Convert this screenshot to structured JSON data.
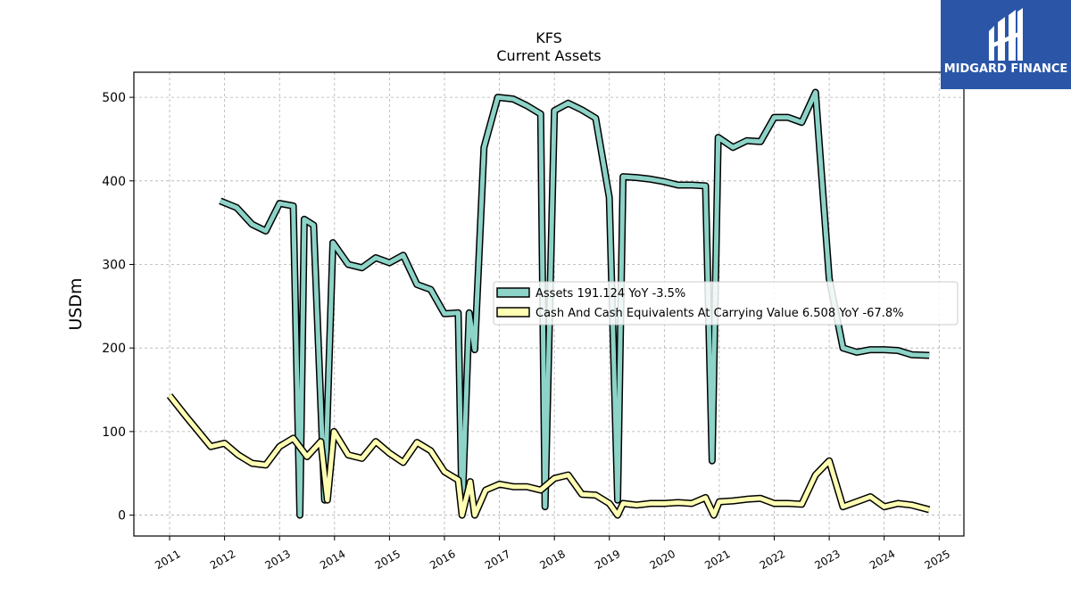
{
  "brand": {
    "name": "MIDGARD FINANCE",
    "color": "#2b56a8"
  },
  "chart_data": {
    "type": "line",
    "title": "KFS",
    "subtitle": "Current  Assets",
    "ylabel": "USDm",
    "xlabel": "",
    "ylim": [
      -25,
      530
    ],
    "xlim": [
      2010.35,
      2025.45
    ],
    "yticks": [
      0,
      100,
      200,
      300,
      400,
      500
    ],
    "xticks": [
      2011,
      2012,
      2013,
      2014,
      2015,
      2016,
      2017,
      2018,
      2019,
      2020,
      2021,
      2022,
      2023,
      2024,
      2025
    ],
    "grid": true,
    "legend_position": "center-right",
    "series": [
      {
        "name": "Assets",
        "legend_label": "Assets  191.124 YoY -3.5%",
        "color": "#8dd3c7",
        "x": [
          2011.92,
          2012.22,
          2012.5,
          2012.75,
          2013.0,
          2013.25,
          2013.37,
          2013.45,
          2013.62,
          2013.82,
          2013.97,
          2014.25,
          2014.5,
          2014.75,
          2015.0,
          2015.25,
          2015.5,
          2015.75,
          2016.0,
          2016.25,
          2016.32,
          2016.45,
          2016.55,
          2016.72,
          2016.97,
          2017.25,
          2017.5,
          2017.75,
          2017.83,
          2018.0,
          2018.25,
          2018.5,
          2018.75,
          2019.0,
          2019.15,
          2019.25,
          2019.5,
          2019.75,
          2020.0,
          2020.25,
          2020.5,
          2020.75,
          2020.87,
          2020.98,
          2021.25,
          2021.5,
          2021.75,
          2022.0,
          2022.25,
          2022.5,
          2022.75,
          2023.0,
          2023.25,
          2023.5,
          2023.75,
          2024.0,
          2024.25,
          2024.5,
          2024.82
        ],
        "values": [
          376,
          368,
          348,
          340,
          373,
          370,
          0,
          354,
          347,
          18,
          326,
          300,
          296,
          308,
          302,
          311,
          276,
          270,
          241,
          242,
          2,
          242,
          198,
          440,
          500,
          498,
          490,
          480,
          10,
          484,
          493,
          485,
          475,
          380,
          18,
          405,
          404,
          402,
          399,
          395,
          395,
          394,
          65,
          452,
          440,
          448,
          447,
          476,
          476,
          470,
          506,
          283,
          200,
          195,
          198,
          198,
          197,
          192,
          191.124
        ]
      },
      {
        "name": "Cash And Cash Equivalents At Carrying Value",
        "legend_label": "Cash And Cash Equivalents At Carrying Value  6.508 YoY -67.8%",
        "color": "#ffffb3",
        "x": [
          2011.0,
          2011.3,
          2011.75,
          2012.0,
          2012.25,
          2012.5,
          2012.75,
          2013.0,
          2013.25,
          2013.5,
          2013.75,
          2013.87,
          2013.99,
          2014.25,
          2014.5,
          2014.75,
          2015.0,
          2015.25,
          2015.5,
          2015.75,
          2016.0,
          2016.25,
          2016.32,
          2016.47,
          2016.55,
          2016.75,
          2017.0,
          2017.25,
          2017.5,
          2017.75,
          2018.0,
          2018.25,
          2018.5,
          2018.75,
          2019.0,
          2019.15,
          2019.25,
          2019.5,
          2019.75,
          2020.0,
          2020.25,
          2020.5,
          2020.75,
          2020.9,
          2021.0,
          2021.25,
          2021.5,
          2021.75,
          2022.0,
          2022.25,
          2022.5,
          2022.75,
          2023.0,
          2023.25,
          2023.5,
          2023.75,
          2024.0,
          2024.25,
          2024.5,
          2024.82
        ],
        "values": [
          143,
          118,
          82,
          86,
          72,
          62,
          60,
          82,
          92,
          70,
          88,
          18,
          100,
          72,
          68,
          88,
          74,
          63,
          87,
          77,
          52,
          42,
          0,
          40,
          0,
          30,
          37,
          34,
          34,
          30,
          44,
          48,
          25,
          24,
          14,
          0,
          14,
          12,
          14,
          14,
          15,
          14,
          21,
          0,
          16,
          17,
          19,
          20,
          14,
          14,
          13,
          48,
          65,
          10,
          16,
          22,
          10,
          14,
          12,
          6.508
        ]
      }
    ]
  }
}
